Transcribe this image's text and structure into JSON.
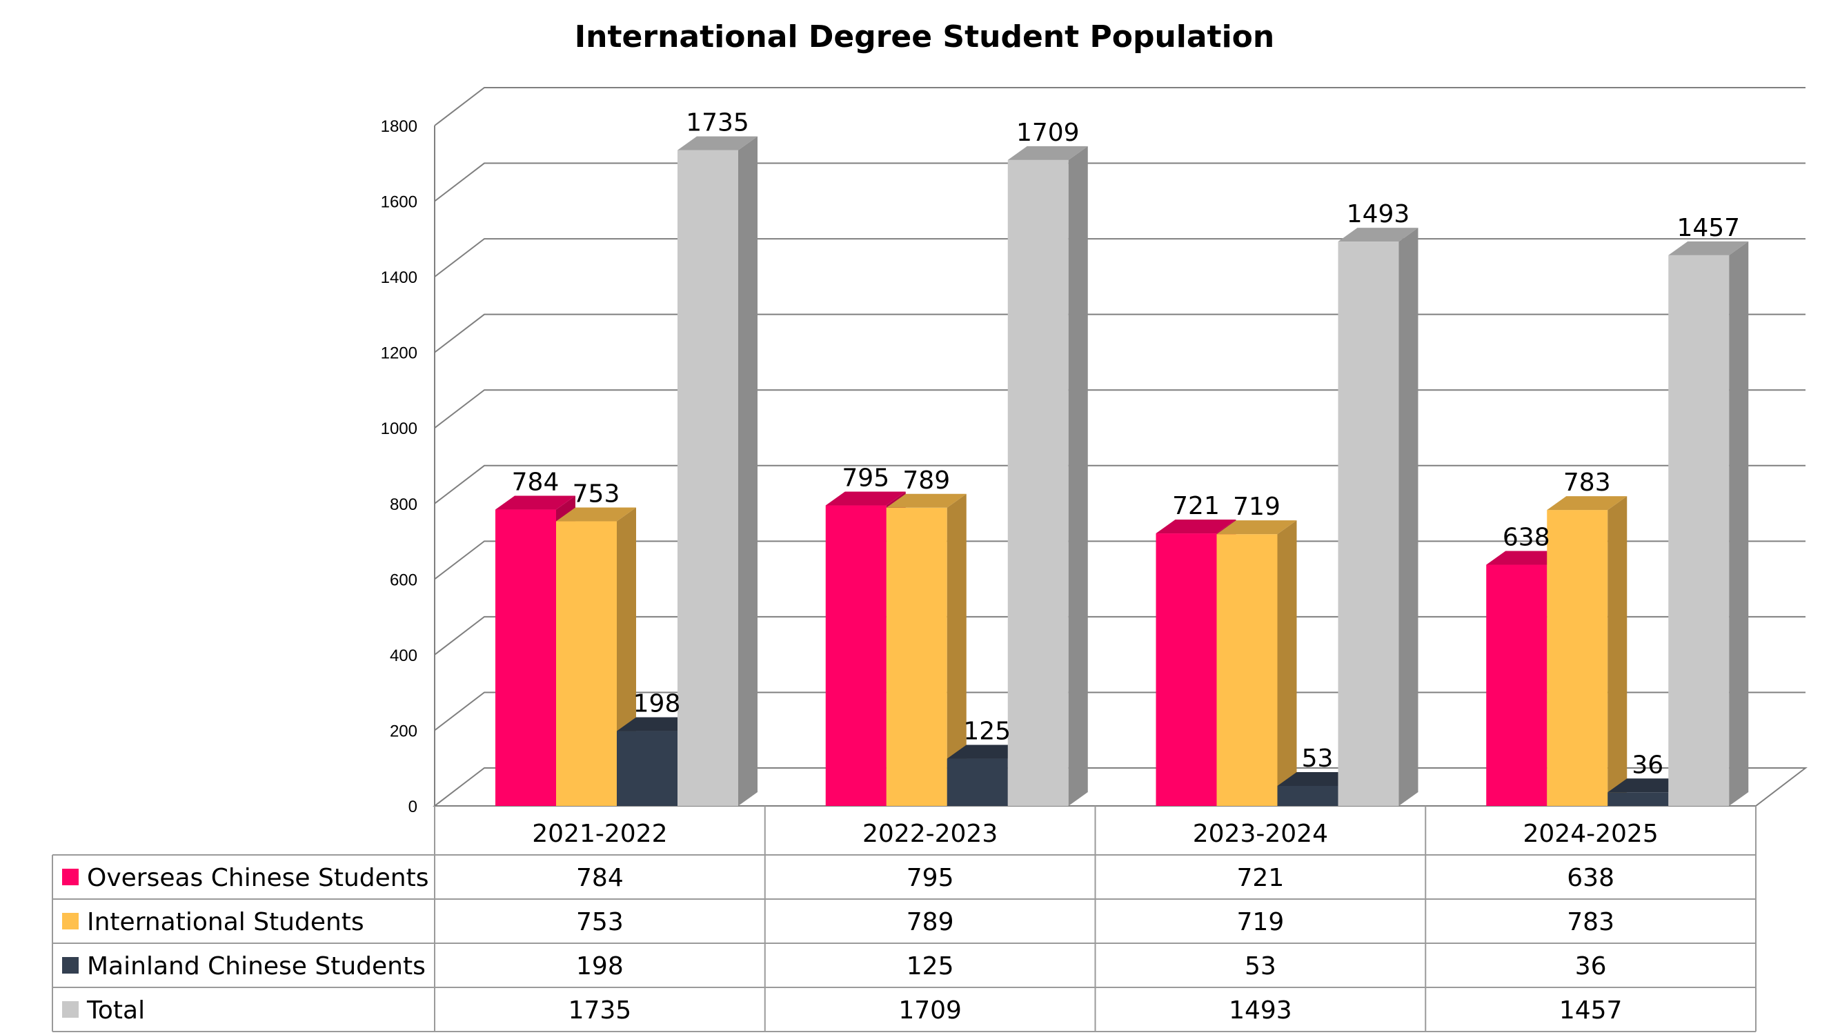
{
  "chart_data": {
    "type": "bar",
    "title": "International Degree Student Population",
    "categories": [
      "2021-2022",
      "2022-2023",
      "2023-2024",
      "2024-2025"
    ],
    "series": [
      {
        "name": "Overseas Chinese Students",
        "values": [
          784,
          795,
          721,
          638
        ],
        "color": "#FF0066"
      },
      {
        "name": "International Students",
        "values": [
          753,
          789,
          719,
          783
        ],
        "color": "#FFC04D"
      },
      {
        "name": "Mainland Chinese Students",
        "values": [
          198,
          125,
          53,
          36
        ],
        "color": "#333F50"
      },
      {
        "name": "Total",
        "values": [
          1735,
          1709,
          1493,
          1457
        ],
        "color": "#C8C8C8"
      }
    ],
    "ylim": [
      0,
      1800
    ],
    "yticks": [
      0,
      200,
      400,
      600,
      800,
      1000,
      1200,
      1400,
      1600,
      1800
    ],
    "grid": true,
    "data_table": true,
    "style": "3d-clustered-column"
  }
}
